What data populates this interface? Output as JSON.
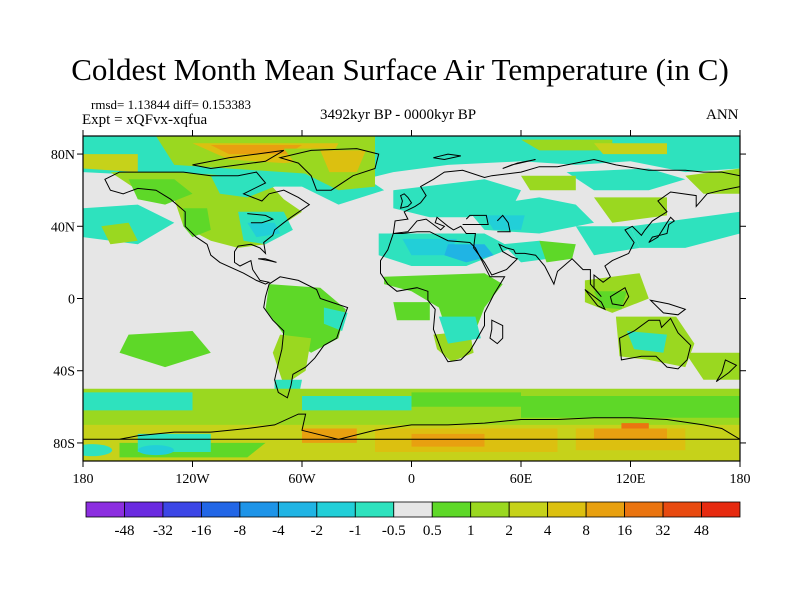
{
  "title": "Coldest Month Mean Surface Air Temperature (in C)",
  "stats": "rmsd= 1.13844  diff= 0.153383",
  "experiment": "Expt = xQFvx-xqfua",
  "period": "3492kyr BP - 0000kyr BP",
  "season": "ANN",
  "map": {
    "projection": "cylindrical equidistant",
    "lon_range": [
      -180,
      180
    ],
    "lat_range": [
      -90,
      90
    ],
    "lat_ticks": [
      {
        "label": "80N",
        "lat": 80
      },
      {
        "label": "40N",
        "lat": 40
      },
      {
        "label": "0",
        "lat": 0
      },
      {
        "label": "40S",
        "lat": -40
      },
      {
        "label": "80S",
        "lat": -80
      }
    ],
    "lon_ticks": [
      {
        "label": "180",
        "lon": -180
      },
      {
        "label": "120W",
        "lon": -120
      },
      {
        "label": "60W",
        "lon": -60
      },
      {
        "label": "0",
        "lon": 0
      },
      {
        "label": "60E",
        "lon": 60
      },
      {
        "label": "120E",
        "lon": 120
      },
      {
        "label": "180",
        "lon": 180
      }
    ],
    "background_color": "#e6e6e6",
    "coastline_color": "#000000"
  },
  "colorbar": {
    "labels": [
      "-48",
      "-32",
      "-16",
      "-8",
      "-4",
      "-2",
      "-1",
      "-0.5",
      "0.5",
      "1",
      "2",
      "4",
      "8",
      "16",
      "32",
      "48"
    ],
    "colors": [
      "#8c2ee0",
      "#6a2ae0",
      "#3c46e6",
      "#2266e6",
      "#1e94e8",
      "#20b4e4",
      "#22cfd8",
      "#2ee2be",
      "#e6e6e6",
      "#5ed828",
      "#9ad820",
      "#c6d21a",
      "#dcc010",
      "#e8a010",
      "#ea7410",
      "#e84a10",
      "#e62a10"
    ]
  }
}
